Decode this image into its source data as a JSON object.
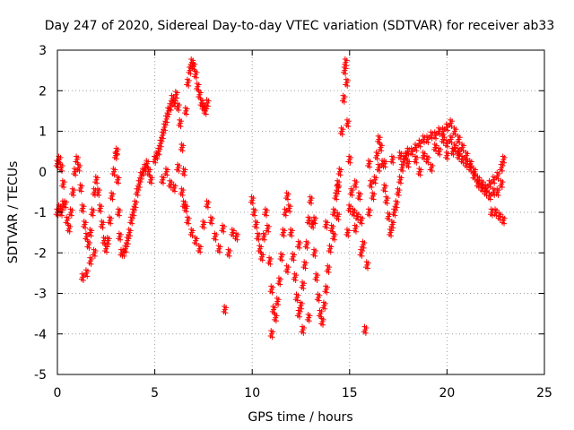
{
  "chart_data": {
    "type": "scatter",
    "title": "Day 247 of 2020, Sidereal Day-to-day VTEC variation (SDTVAR) for receiver ab33",
    "xlabel": "GPS time / hours",
    "ylabel": "SDTVAR / TECUs",
    "xlim": [
      0,
      25
    ],
    "ylim": [
      -5,
      3
    ],
    "xticks": [
      0,
      5,
      10,
      15,
      20,
      25
    ],
    "yticks": [
      -5,
      -4,
      -3,
      -2,
      -1,
      0,
      1,
      2,
      3
    ],
    "grid": true,
    "marker": "+",
    "color": "#ff0000",
    "series": [
      {
        "name": "SDTVAR ab33",
        "points": [
          [
            0.0,
            0.2
          ],
          [
            0.1,
            0.3
          ],
          [
            0.2,
            0.1
          ],
          [
            0.3,
            -0.3
          ],
          [
            0.4,
            -0.8
          ],
          [
            0.5,
            -1.2
          ],
          [
            0.6,
            -1.4
          ],
          [
            0.7,
            -1.0
          ],
          [
            0.8,
            -0.5
          ],
          [
            0.9,
            0.0
          ],
          [
            1.0,
            0.3
          ],
          [
            1.1,
            0.1
          ],
          [
            1.2,
            -0.4
          ],
          [
            1.3,
            -0.9
          ],
          [
            1.4,
            -1.3
          ],
          [
            1.5,
            -1.6
          ],
          [
            1.6,
            -1.8
          ],
          [
            1.7,
            -1.5
          ],
          [
            1.8,
            -1.0
          ],
          [
            1.9,
            -0.5
          ],
          [
            2.0,
            -0.2
          ],
          [
            2.1,
            -0.5
          ],
          [
            2.2,
            -0.9
          ],
          [
            2.3,
            -1.3
          ],
          [
            2.4,
            -1.7
          ],
          [
            2.5,
            -1.9
          ],
          [
            2.6,
            -1.7
          ],
          [
            2.7,
            -1.2
          ],
          [
            2.8,
            -0.6
          ],
          [
            2.9,
            0.0
          ],
          [
            3.0,
            0.4
          ],
          [
            3.05,
            0.5
          ],
          [
            3.1,
            -0.2
          ],
          [
            3.15,
            -1.0
          ],
          [
            3.2,
            -1.6
          ],
          [
            3.3,
            -2.0
          ],
          [
            3.4,
            -2.0
          ],
          [
            3.5,
            -1.9
          ],
          [
            3.6,
            -1.7
          ],
          [
            3.7,
            -1.5
          ],
          [
            3.8,
            -1.2
          ],
          [
            3.9,
            -1.0
          ],
          [
            4.0,
            -0.8
          ],
          [
            4.1,
            -0.5
          ],
          [
            4.2,
            -0.3
          ],
          [
            4.3,
            -0.1
          ],
          [
            4.4,
            0.0
          ],
          [
            4.5,
            0.1
          ],
          [
            4.6,
            0.2
          ],
          [
            4.7,
            0.0
          ],
          [
            4.8,
            -0.2
          ],
          [
            5.0,
            0.3
          ],
          [
            5.1,
            0.4
          ],
          [
            5.2,
            0.5
          ],
          [
            5.3,
            0.7
          ],
          [
            5.4,
            0.9
          ],
          [
            5.5,
            1.1
          ],
          [
            5.6,
            1.3
          ],
          [
            5.7,
            1.5
          ],
          [
            5.8,
            1.6
          ],
          [
            5.9,
            1.8
          ],
          [
            6.0,
            1.7
          ],
          [
            6.1,
            1.9
          ],
          [
            6.2,
            1.6
          ],
          [
            6.3,
            1.2
          ],
          [
            6.4,
            0.6
          ],
          [
            6.5,
            0.0
          ],
          [
            6.6,
            1.5
          ],
          [
            6.7,
            2.2
          ],
          [
            6.8,
            2.5
          ],
          [
            6.9,
            2.7
          ],
          [
            7.0,
            2.6
          ],
          [
            7.1,
            2.4
          ],
          [
            7.2,
            2.1
          ],
          [
            7.3,
            1.9
          ],
          [
            7.4,
            1.7
          ],
          [
            7.5,
            1.6
          ],
          [
            7.6,
            1.5
          ],
          [
            7.7,
            1.7
          ],
          [
            6.5,
            -0.8
          ],
          [
            6.7,
            -1.2
          ],
          [
            6.9,
            -1.5
          ],
          [
            7.1,
            -1.7
          ],
          [
            7.3,
            -1.9
          ],
          [
            7.5,
            -1.3
          ],
          [
            7.7,
            -0.8
          ],
          [
            7.9,
            -1.2
          ],
          [
            8.1,
            -1.6
          ],
          [
            8.3,
            -1.9
          ],
          [
            8.5,
            -1.4
          ],
          [
            8.6,
            -3.4
          ],
          [
            8.8,
            -2.0
          ],
          [
            9.0,
            -1.5
          ],
          [
            9.2,
            -1.6
          ],
          [
            5.4,
            -0.2
          ],
          [
            5.6,
            0.0
          ],
          [
            5.8,
            -0.3
          ],
          [
            6.0,
            -0.4
          ],
          [
            6.2,
            0.1
          ],
          [
            6.4,
            -0.5
          ],
          [
            6.6,
            -0.9
          ],
          [
            1.3,
            -2.6
          ],
          [
            1.5,
            -2.5
          ],
          [
            1.7,
            -2.2
          ],
          [
            1.9,
            -2.0
          ],
          [
            0.0,
            -1.0
          ],
          [
            0.1,
            -0.9
          ],
          [
            0.2,
            -1.0
          ],
          [
            0.3,
            -0.8
          ],
          [
            10.0,
            -0.7
          ],
          [
            10.1,
            -1.0
          ],
          [
            10.2,
            -1.3
          ],
          [
            10.3,
            -1.6
          ],
          [
            10.4,
            -1.9
          ],
          [
            10.5,
            -2.1
          ],
          [
            10.6,
            -1.6
          ],
          [
            10.7,
            -1.0
          ],
          [
            10.8,
            -1.4
          ],
          [
            10.9,
            -2.2
          ],
          [
            11.0,
            -2.9
          ],
          [
            11.1,
            -3.4
          ],
          [
            11.2,
            -3.6
          ],
          [
            11.3,
            -3.2
          ],
          [
            11.4,
            -2.7
          ],
          [
            11.5,
            -2.1
          ],
          [
            11.6,
            -1.5
          ],
          [
            11.7,
            -1.0
          ],
          [
            11.8,
            -0.6
          ],
          [
            11.9,
            -0.9
          ],
          [
            12.0,
            -1.5
          ],
          [
            12.1,
            -2.1
          ],
          [
            12.2,
            -2.6
          ],
          [
            12.3,
            -3.1
          ],
          [
            12.4,
            -3.5
          ],
          [
            12.5,
            -3.3
          ],
          [
            12.6,
            -2.8
          ],
          [
            12.7,
            -2.3
          ],
          [
            12.8,
            -1.8
          ],
          [
            12.9,
            -1.2
          ],
          [
            13.0,
            -0.7
          ],
          [
            13.1,
            -1.3
          ],
          [
            13.2,
            -2.0
          ],
          [
            13.3,
            -2.6
          ],
          [
            13.4,
            -3.1
          ],
          [
            13.5,
            -3.5
          ],
          [
            13.6,
            -3.7
          ],
          [
            13.7,
            -3.3
          ],
          [
            13.8,
            -2.9
          ],
          [
            13.9,
            -2.4
          ],
          [
            14.0,
            -1.9
          ],
          [
            14.1,
            -1.4
          ],
          [
            14.2,
            -1.0
          ],
          [
            14.3,
            -0.6
          ],
          [
            14.4,
            -0.3
          ],
          [
            14.5,
            0.0
          ],
          [
            14.6,
            1.0
          ],
          [
            14.7,
            1.8
          ],
          [
            14.75,
            2.5
          ],
          [
            14.8,
            2.7
          ],
          [
            14.85,
            2.2
          ],
          [
            14.9,
            1.2
          ],
          [
            15.0,
            0.3
          ],
          [
            15.1,
            -0.5
          ],
          [
            15.2,
            -1.0
          ],
          [
            15.3,
            -1.4
          ],
          [
            15.4,
            -1.1
          ],
          [
            15.5,
            -0.6
          ],
          [
            15.6,
            -1.2
          ],
          [
            15.7,
            -1.8
          ],
          [
            15.8,
            -3.9
          ],
          [
            15.9,
            -2.3
          ],
          [
            11.0,
            -4.0
          ],
          [
            12.6,
            -3.9
          ],
          [
            12.9,
            -3.6
          ],
          [
            11.8,
            -2.4
          ],
          [
            12.4,
            -1.8
          ],
          [
            13.2,
            -1.2
          ],
          [
            14.2,
            -1.6
          ],
          [
            14.4,
            -1.1
          ],
          [
            16.0,
            0.2
          ],
          [
            16.1,
            -0.3
          ],
          [
            16.2,
            -0.6
          ],
          [
            16.3,
            -0.2
          ],
          [
            16.4,
            0.4
          ],
          [
            16.5,
            0.8
          ],
          [
            16.6,
            0.6
          ],
          [
            16.7,
            0.2
          ],
          [
            16.8,
            -0.4
          ],
          [
            16.9,
            -0.7
          ],
          [
            17.0,
            -1.1
          ],
          [
            17.1,
            -1.5
          ],
          [
            17.2,
            -1.3
          ],
          [
            17.3,
            -1.0
          ],
          [
            17.4,
            -0.8
          ],
          [
            17.5,
            -0.5
          ],
          [
            17.6,
            -0.2
          ],
          [
            17.7,
            0.1
          ],
          [
            17.8,
            0.3
          ],
          [
            17.9,
            0.4
          ],
          [
            18.0,
            0.5
          ],
          [
            18.2,
            0.5
          ],
          [
            18.4,
            0.6
          ],
          [
            18.6,
            0.7
          ],
          [
            18.8,
            0.8
          ],
          [
            19.0,
            0.8
          ],
          [
            19.2,
            0.9
          ],
          [
            19.4,
            0.9
          ],
          [
            19.6,
            1.0
          ],
          [
            19.8,
            1.0
          ],
          [
            20.0,
            1.1
          ],
          [
            20.2,
            1.2
          ],
          [
            20.4,
            1.0
          ],
          [
            20.6,
            0.8
          ],
          [
            20.8,
            0.6
          ],
          [
            21.0,
            0.4
          ],
          [
            21.2,
            0.2
          ],
          [
            21.4,
            0.0
          ],
          [
            21.6,
            -0.2
          ],
          [
            21.8,
            -0.3
          ],
          [
            22.0,
            -0.4
          ],
          [
            22.2,
            -0.3
          ],
          [
            22.4,
            -0.2
          ],
          [
            22.6,
            -0.1
          ],
          [
            22.8,
            0.1
          ],
          [
            22.9,
            0.3
          ],
          [
            16.5,
            0.1
          ],
          [
            16.8,
            0.2
          ],
          [
            17.2,
            0.3
          ],
          [
            17.6,
            0.4
          ],
          [
            18.0,
            0.2
          ],
          [
            18.4,
            0.3
          ],
          [
            18.8,
            0.4
          ],
          [
            19.2,
            0.1
          ],
          [
            19.6,
            0.5
          ],
          [
            20.0,
            0.7
          ],
          [
            20.4,
            0.6
          ],
          [
            20.8,
            0.3
          ],
          [
            21.2,
            0.1
          ],
          [
            21.6,
            -0.3
          ],
          [
            22.0,
            -0.5
          ],
          [
            22.4,
            -0.5
          ],
          [
            22.8,
            -0.3
          ],
          [
            18.6,
            0.0
          ],
          [
            19.0,
            0.3
          ],
          [
            19.4,
            0.6
          ],
          [
            19.8,
            0.8
          ],
          [
            20.2,
            0.8
          ],
          [
            20.6,
            0.5
          ],
          [
            21.0,
            0.2
          ],
          [
            21.4,
            -0.1
          ],
          [
            21.8,
            -0.4
          ],
          [
            22.2,
            -0.6
          ],
          [
            22.6,
            -0.5
          ],
          [
            22.3,
            -1.0
          ],
          [
            22.5,
            -1.0
          ],
          [
            22.7,
            -1.1
          ],
          [
            22.9,
            -1.2
          ],
          [
            20.0,
            0.4
          ],
          [
            20.3,
            0.5
          ],
          [
            20.6,
            0.4
          ],
          [
            16.0,
            -1.0
          ],
          [
            15.6,
            -2.0
          ],
          [
            14.9,
            -1.5
          ],
          [
            14.4,
            -0.4
          ],
          [
            13.8,
            -1.3
          ],
          [
            15.3,
            -0.3
          ],
          [
            15.0,
            -0.9
          ]
        ]
      }
    ]
  }
}
